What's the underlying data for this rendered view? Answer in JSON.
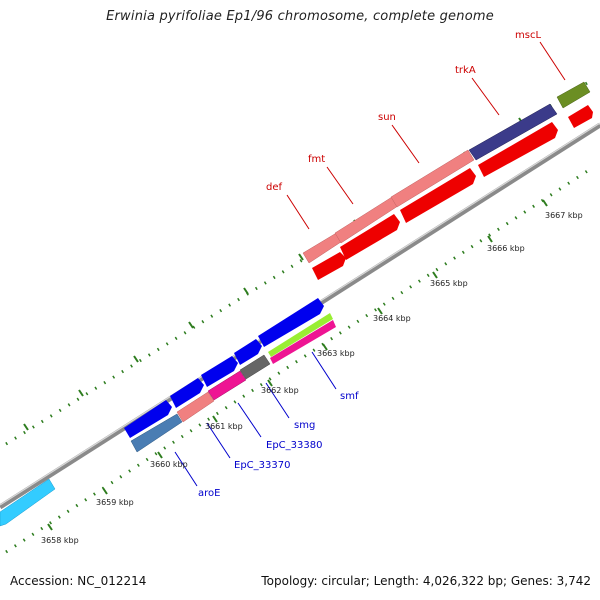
{
  "title": "Erwinia pyrifoliae Ep1/96 chromosome, complete genome",
  "footer": {
    "accession": "Accession: NC_012214",
    "summary": "Topology: circular; Length: 4,026,322 bp; Genes: 3,742"
  },
  "colors": {
    "backbone": "#8a8a8a",
    "tick": "#2e7d1f",
    "label_red": "#cc0000",
    "label_blue": "#0000cc"
  },
  "kbp_labels": [
    "3658 kbp",
    "3659 kbp",
    "3660 kbp",
    "3661 kbp",
    "3662 kbp",
    "3663 kbp",
    "3664 kbp",
    "3665 kbp",
    "3666 kbp",
    "3667 kbp"
  ],
  "gene_labels": {
    "top": [
      "def",
      "fmt",
      "sun",
      "trkA",
      "mscL"
    ],
    "bottom": [
      "aroE",
      "EpC_33370",
      "EpC_33380",
      "smg",
      "smf"
    ]
  }
}
